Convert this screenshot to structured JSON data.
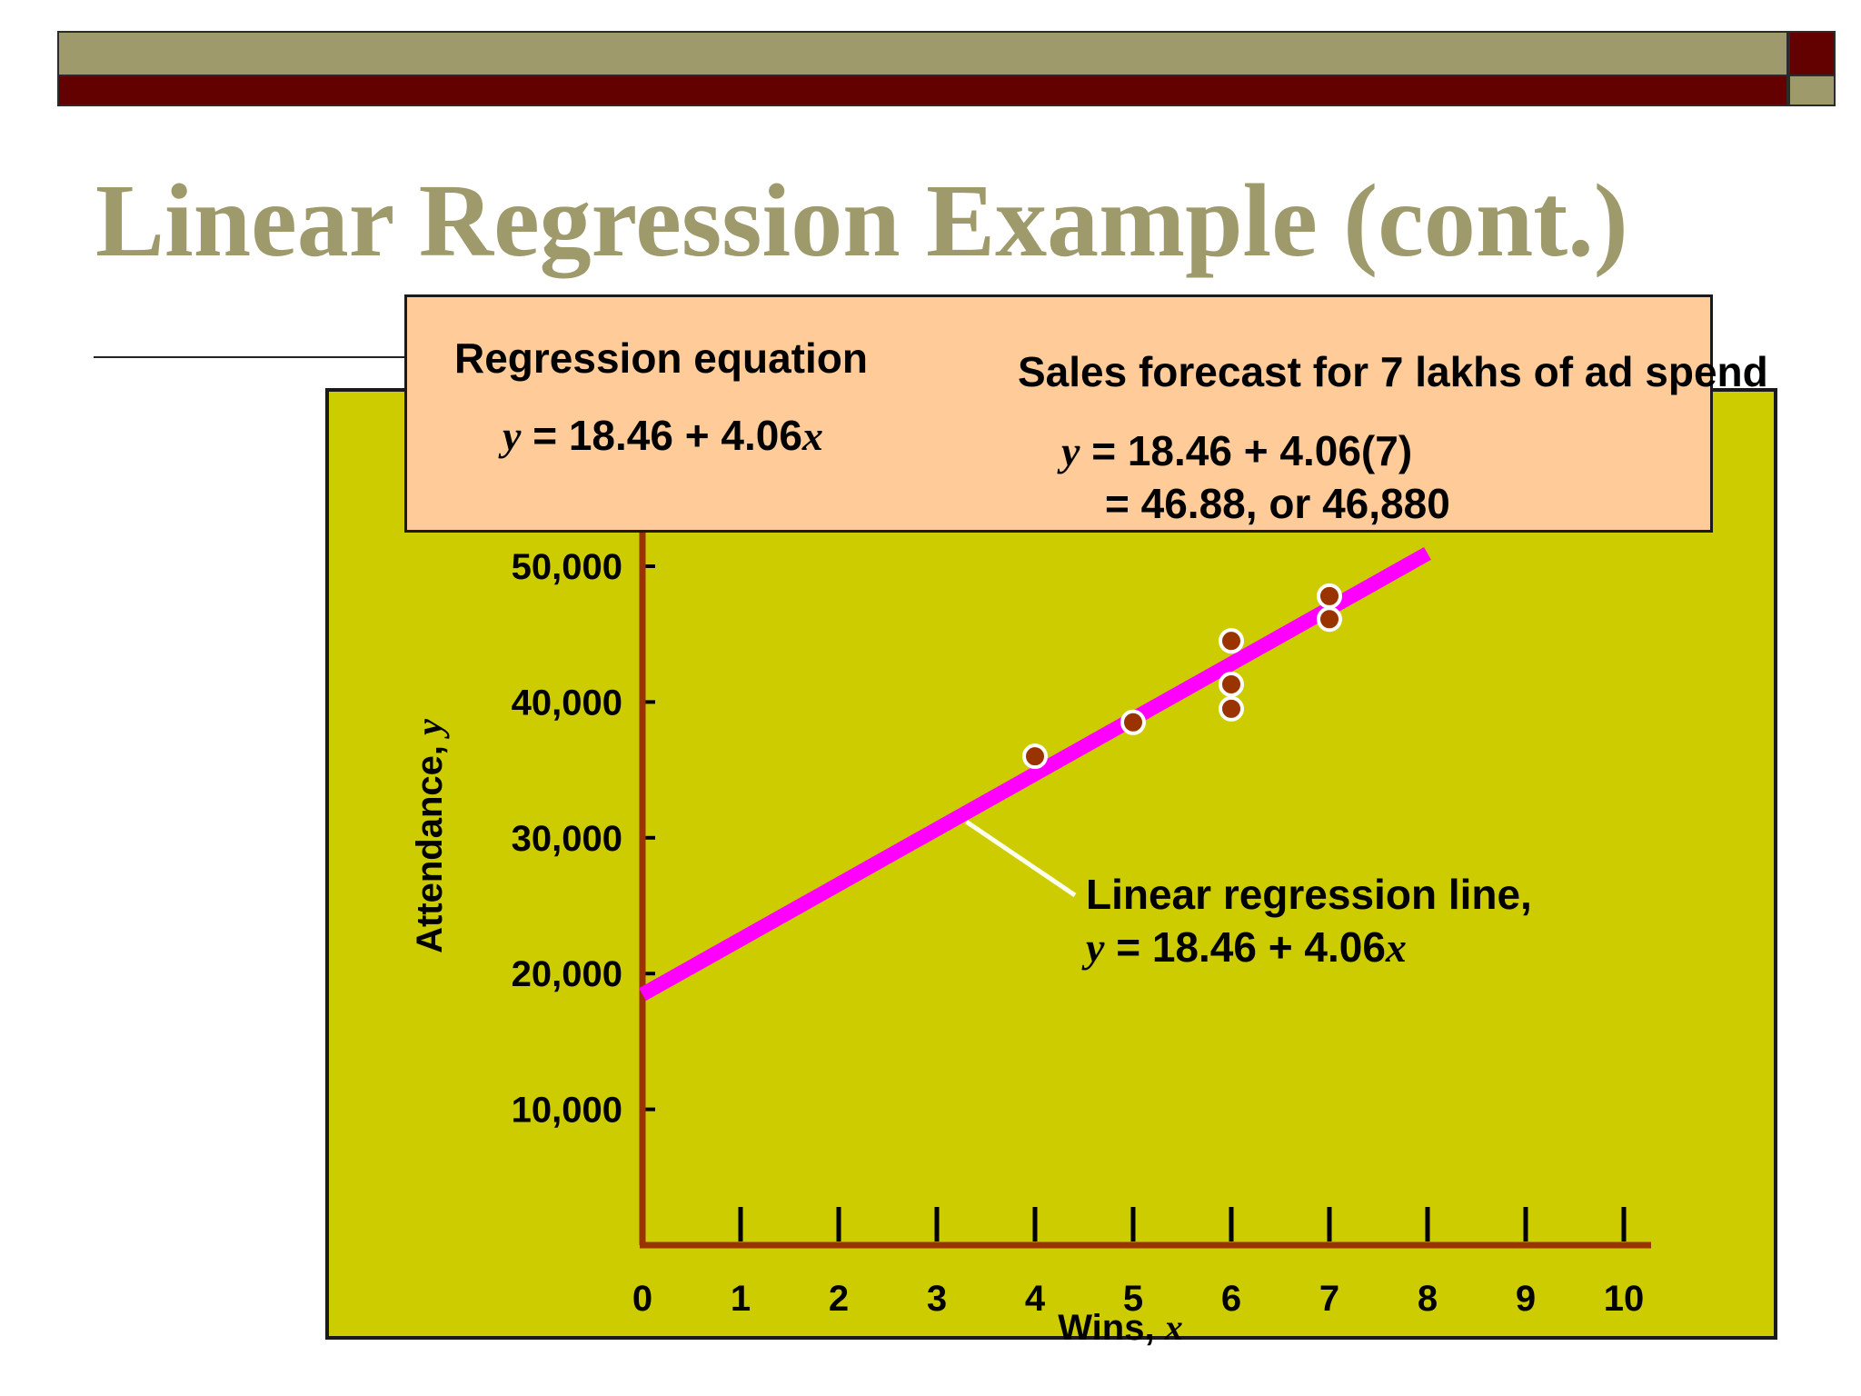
{
  "slide": {
    "title": "Linear Regression Example (cont.)"
  },
  "callout": {
    "left_heading": "Regression equation",
    "left_y": "y",
    "left_eq": " = 18.46 + 4.06",
    "left_x": "x",
    "right_heading": "Sales forecast for 7 lakhs of ad spend",
    "right_y": "y",
    "right_line1": " = 18.46 + 4.06(7)",
    "right_line2": "= 46.88, or 46,880"
  },
  "annotation": {
    "line1": "Linear regression line,",
    "eq_y": "y",
    "eq_mid": " = 18.46 + 4.06",
    "eq_x": "x"
  },
  "chart_data": {
    "type": "scatter",
    "xlabel": "Wins, x",
    "ylabel": "Attendance, y",
    "xlim": [
      0,
      10
    ],
    "ylim": [
      0,
      60000
    ],
    "x_ticks": [
      0,
      1,
      2,
      3,
      4,
      5,
      6,
      7,
      8,
      9,
      10
    ],
    "x_tick_labels": [
      "0",
      "1",
      "2",
      "3",
      "4",
      "5",
      "6",
      "7",
      "8",
      "9",
      "10"
    ],
    "y_ticks": [
      10000,
      20000,
      30000,
      40000,
      50000
    ],
    "y_tick_labels": [
      "10,000",
      "20,000",
      "30,000",
      "40,000",
      "50,000"
    ],
    "points": [
      {
        "x": 4,
        "y": 36000
      },
      {
        "x": 5,
        "y": 38500
      },
      {
        "x": 6,
        "y": 44500
      },
      {
        "x": 6,
        "y": 41300
      },
      {
        "x": 6,
        "y": 39500
      },
      {
        "x": 7,
        "y": 47800
      },
      {
        "x": 7,
        "y": 46100
      }
    ],
    "regression_line": {
      "intercept": 18460,
      "slope": 4060,
      "x_from": 0,
      "x_to": 8
    },
    "colors": {
      "plot_background": "#cccc00",
      "axis": "#993300",
      "regression_line": "#ff00ff",
      "points": "#993300",
      "point_outline": "#ffffff",
      "leader_line": "#ffffee"
    }
  }
}
